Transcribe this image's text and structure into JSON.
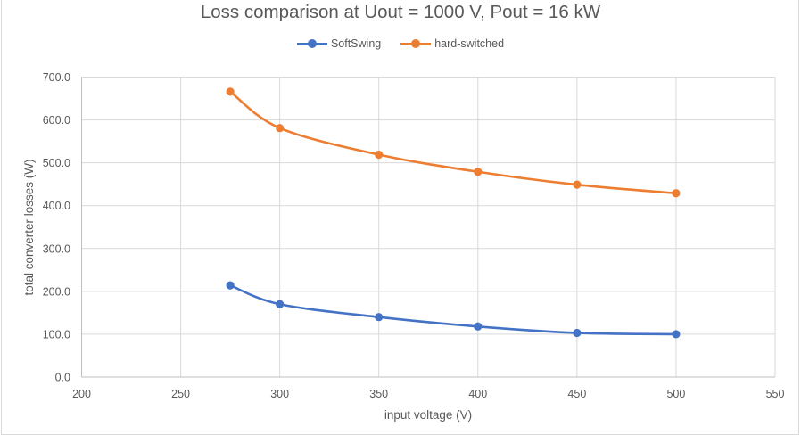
{
  "chart_data": {
    "type": "line",
    "title": "Loss comparison at Uout = 1000 V, Pout = 16 kW",
    "xlabel": "input voltage (V)",
    "ylabel": "total converter losses (W)",
    "xlim": [
      200,
      550
    ],
    "ylim": [
      0,
      700
    ],
    "xticks": [
      200,
      250,
      300,
      350,
      400,
      450,
      500,
      550
    ],
    "yticks": [
      0,
      100,
      200,
      300,
      400,
      500,
      600,
      700
    ],
    "ytick_labels": [
      "0.0",
      "100.0",
      "200.0",
      "300.0",
      "400.0",
      "500.0",
      "600.0",
      "700.0"
    ],
    "xtick_labels": [
      "200",
      "250",
      "300",
      "350",
      "400",
      "450",
      "500",
      "550"
    ],
    "grid": true,
    "legend_position": "top",
    "smooth": true,
    "series": [
      {
        "name": "SoftSwing",
        "color": "#4472c4",
        "x": [
          275,
          300,
          350,
          400,
          450,
          500
        ],
        "y": [
          214,
          170,
          140,
          118,
          103,
          100
        ]
      },
      {
        "name": "hard-switched",
        "color": "#ed7d31",
        "x": [
          275,
          300,
          350,
          400,
          450,
          500
        ],
        "y": [
          666,
          581,
          519,
          479,
          449,
          429
        ]
      }
    ]
  }
}
